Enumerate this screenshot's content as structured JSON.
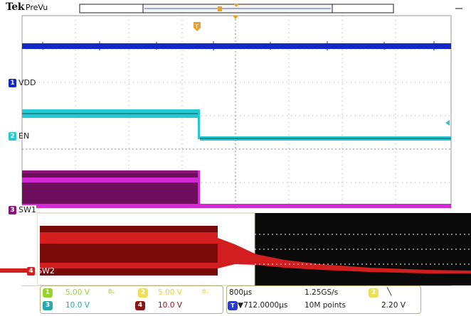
{
  "header": {
    "brand": "Tek",
    "mode": "PreVu"
  },
  "colors": {
    "ch1": "#1428c8",
    "ch2": "#28c8d2",
    "ch3": "#8c1478",
    "ch4": "#d21e1e",
    "trigger": "#f0a020",
    "grid": "#9a9a9a",
    "panel_border": "#b8b27a"
  },
  "channels": [
    {
      "id": "1",
      "name": "VDD",
      "tag_color": "#1428c8"
    },
    {
      "id": "2",
      "name": "EN",
      "tag_color": "#28c8d2"
    },
    {
      "id": "3",
      "name": "SW1",
      "tag_color": "#8c1478"
    },
    {
      "id": "4",
      "name": "SW2",
      "tag_color": "#d21e1e"
    }
  ],
  "trigger_marker": "T",
  "footer": {
    "ch1_scale": "5.00 V",
    "ch1_bw": "Bᵤ",
    "ch2_scale": "5.00 V",
    "ch2_bw": "Bᵤ",
    "ch3_scale": "10.0 V",
    "ch4_scale": "10.0 V",
    "timebase": "800µs",
    "sample_rate": "1.25GS/s",
    "trigger_position": "▼712.0000µs",
    "record_length": "10M points",
    "trigger_source": "2",
    "trigger_slope": "╲",
    "trigger_level": "2.20 V"
  }
}
